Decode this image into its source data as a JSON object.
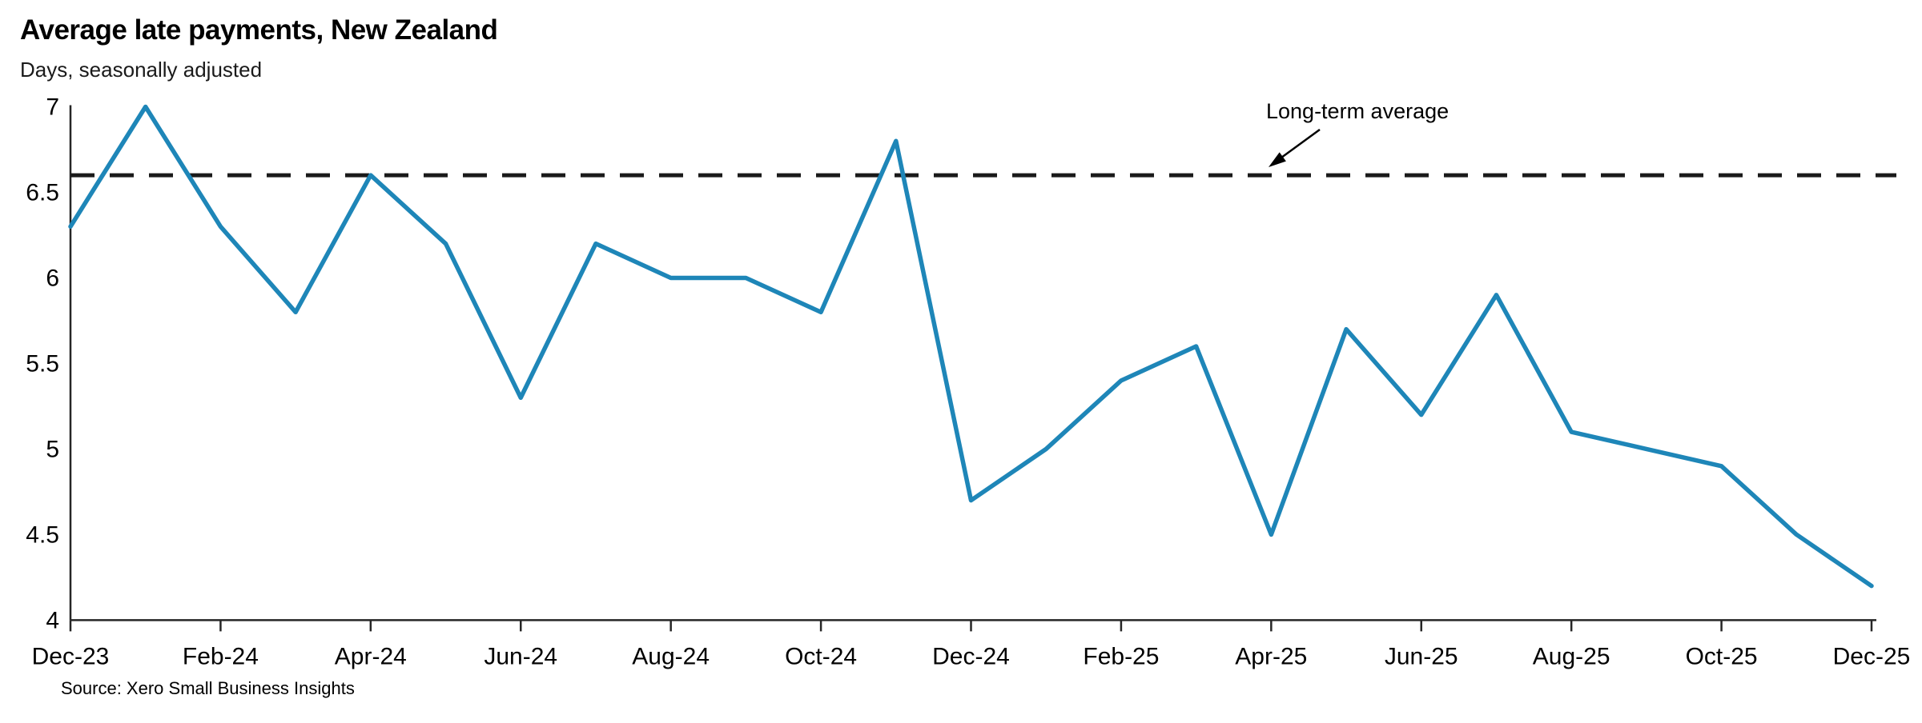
{
  "header": {
    "title": "Average late payments, New Zealand",
    "subtitle": "Days, seasonally adjusted"
  },
  "annotation": {
    "label": "Long-term average"
  },
  "footer": {
    "source": "Source: Xero Small Business Insights"
  },
  "colors": {
    "line": "#1e86b8",
    "axis": "#262626",
    "reference_line": "#1a1a1a",
    "text": "#000000"
  },
  "chart_data": {
    "type": "line",
    "title": "Average late payments, New Zealand",
    "subtitle": "Days, seasonally adjusted",
    "unit": "days",
    "x": [
      "Dec-23",
      "Jan-24",
      "Feb-24",
      "Mar-24",
      "Apr-24",
      "May-24",
      "Jun-24",
      "Jul-24",
      "Aug-24",
      "Sep-24",
      "Oct-24",
      "Nov-24",
      "Dec-24",
      "Jan-25",
      "Feb-25",
      "Mar-25",
      "Apr-25",
      "May-25",
      "Jun-25",
      "Jul-25",
      "Aug-25",
      "Sep-25",
      "Oct-25",
      "Nov-25",
      "Dec-25"
    ],
    "values": [
      6.3,
      7.0,
      6.3,
      5.8,
      6.6,
      6.2,
      5.3,
      6.2,
      6.0,
      6.0,
      5.8,
      6.8,
      4.7,
      5.0,
      5.4,
      5.6,
      4.5,
      5.7,
      5.2,
      5.9,
      5.1,
      5.0,
      4.9,
      4.5,
      4.2
    ],
    "x_tick_labels": [
      "Dec-23",
      "Feb-24",
      "Apr-24",
      "Jun-24",
      "Aug-24",
      "Oct-24",
      "Dec-24",
      "Feb-25",
      "Apr-25",
      "Jun-25",
      "Aug-25",
      "Oct-25",
      "Dec-25"
    ],
    "x_tick_every": 2,
    "y_ticks": [
      4,
      4.5,
      5,
      5.5,
      6,
      6.5,
      7
    ],
    "ylim": [
      4,
      7
    ],
    "reference_line": {
      "label": "Long-term average",
      "value": 6.6,
      "style": "dashed"
    },
    "grid": false,
    "legend": null
  }
}
